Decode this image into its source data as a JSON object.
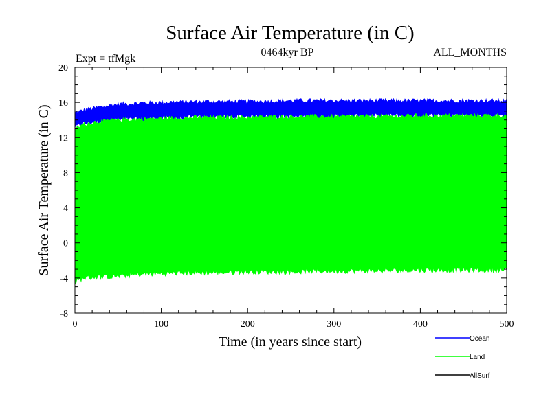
{
  "chart_data": {
    "type": "area",
    "title": "Surface Air Temperature (in C)",
    "experiment_label": "Expt = tfMgk",
    "period_label": "0464kyr BP",
    "months_label": "ALL_MONTHS",
    "xlabel": "Time (in years since start)",
    "ylabel": "Surface Air Temperature (in C)",
    "xlim": [
      0,
      500
    ],
    "ylim": [
      -8,
      20
    ],
    "x_ticks": [
      0,
      100,
      200,
      300,
      400,
      500
    ],
    "y_ticks": [
      -8,
      -4,
      0,
      4,
      8,
      12,
      16,
      20
    ],
    "grid": false,
    "legend_position": "bottom-right",
    "series": [
      {
        "name": "Ocean",
        "color": "#0000ff",
        "x": [
          0,
          10,
          25,
          50,
          75,
          100,
          150,
          200,
          250,
          300,
          350,
          400,
          450,
          500
        ],
        "upper": [
          14.8,
          15.1,
          15.4,
          15.8,
          15.9,
          16.0,
          16.1,
          16.1,
          16.2,
          16.2,
          16.2,
          16.2,
          16.2,
          16.2
        ],
        "lower": [
          13.2,
          13.6,
          13.8,
          14.0,
          14.1,
          14.2,
          14.3,
          14.4,
          14.4,
          14.4,
          14.5,
          14.5,
          14.5,
          14.5
        ]
      },
      {
        "name": "Land",
        "color": "#00ff00",
        "x": [
          0,
          10,
          25,
          50,
          75,
          100,
          150,
          200,
          250,
          300,
          350,
          400,
          450,
          500
        ],
        "upper": [
          13.0,
          13.5,
          13.8,
          14.0,
          14.1,
          14.2,
          14.3,
          14.3,
          14.4,
          14.4,
          14.4,
          14.5,
          14.5,
          14.5
        ],
        "lower": [
          -4.5,
          -4.0,
          -3.9,
          -3.8,
          -3.6,
          -3.5,
          -3.4,
          -3.3,
          -3.3,
          -3.2,
          -3.2,
          -3.1,
          -3.1,
          -3.1
        ]
      },
      {
        "name": "AllSurf",
        "color": "#000000",
        "x": [],
        "values": []
      }
    ]
  }
}
